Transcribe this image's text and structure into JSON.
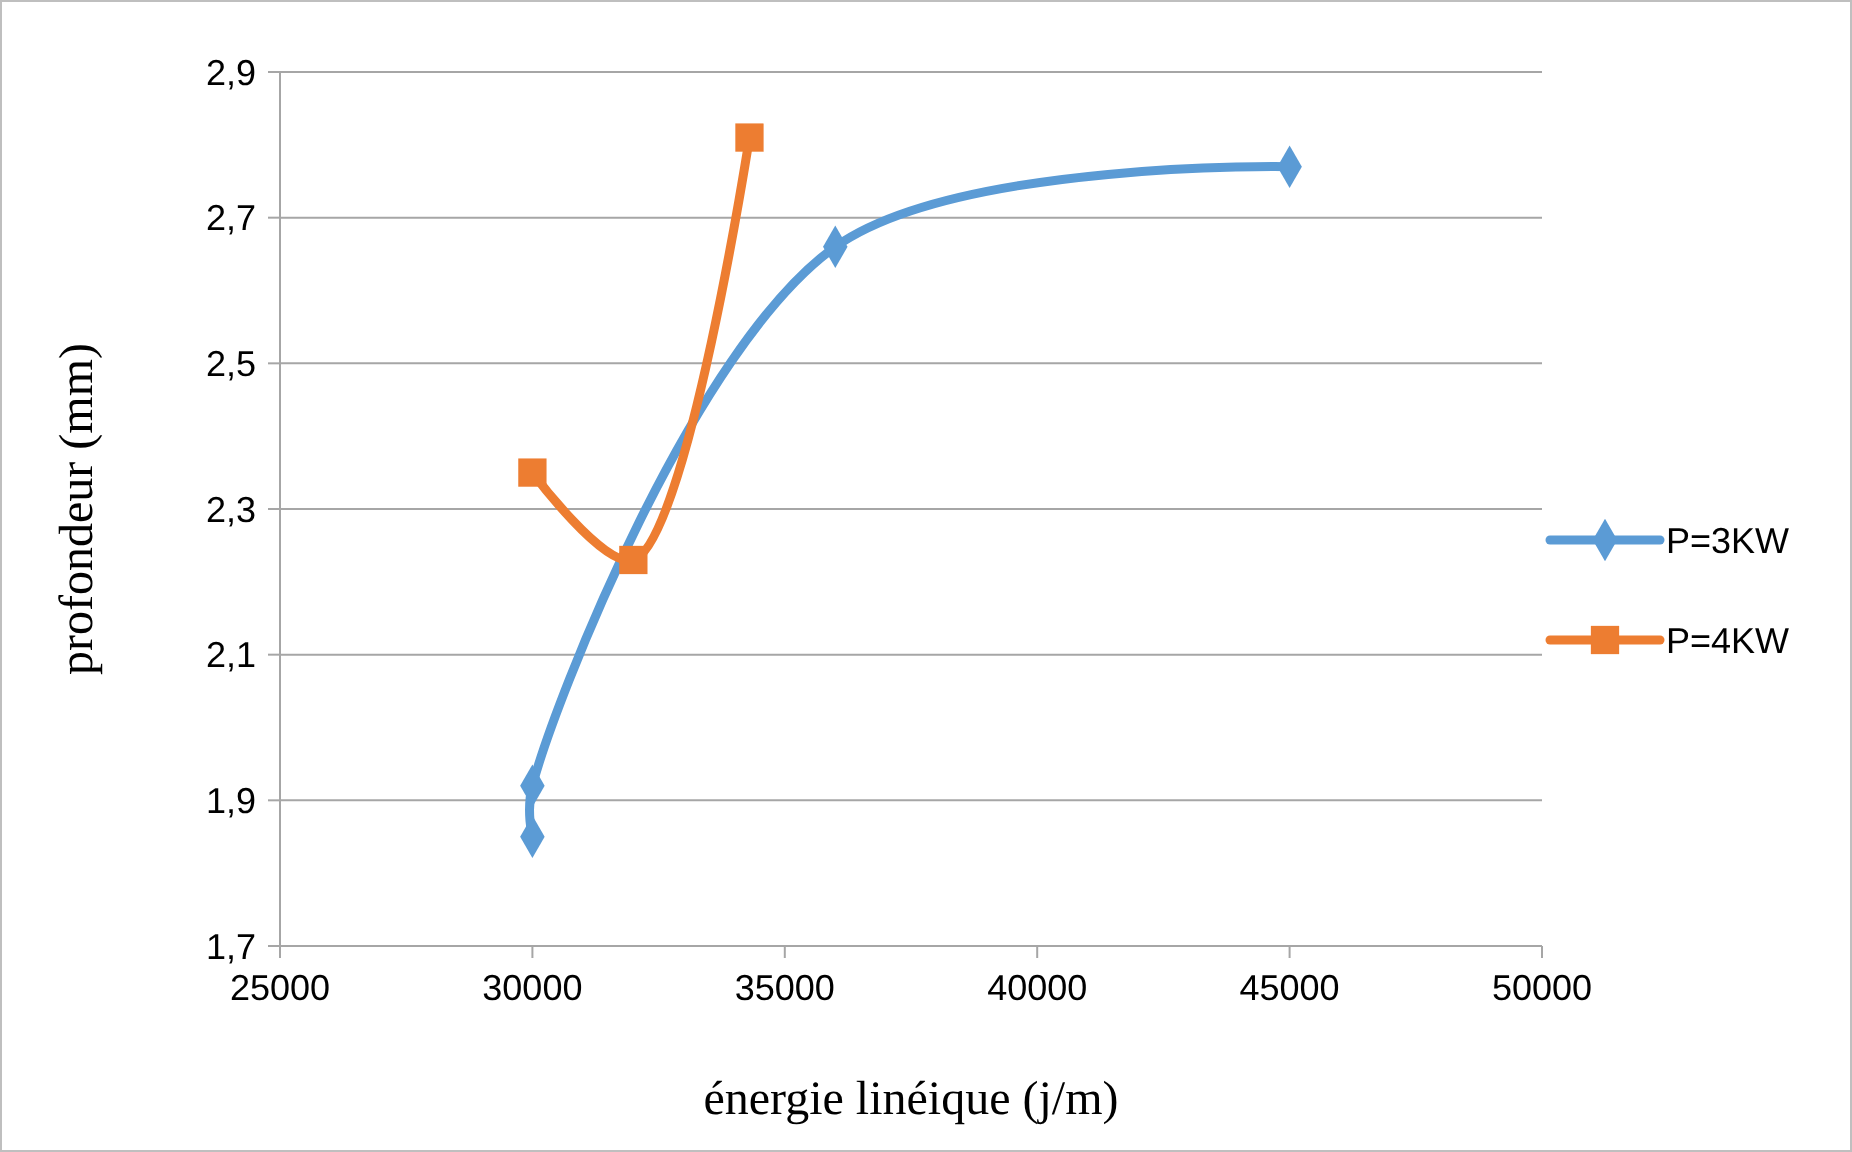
{
  "chart_data": {
    "type": "line",
    "xlabel": "énergie linéique (j/m)",
    "ylabel": "profondeur (mm)",
    "xlim": [
      25000,
      50000
    ],
    "xticks": [
      25000,
      30000,
      35000,
      40000,
      45000,
      50000
    ],
    "ylim": [
      1.7,
      2.9
    ],
    "yticks": [
      {
        "value": 1.7,
        "label": "1,7"
      },
      {
        "value": 1.9,
        "label": "1,9"
      },
      {
        "value": 2.1,
        "label": "2,1"
      },
      {
        "value": 2.3,
        "label": "2,3"
      },
      {
        "value": 2.5,
        "label": "2,5"
      },
      {
        "value": 2.7,
        "label": "2,7"
      },
      {
        "value": 2.9,
        "label": "2,9"
      }
    ],
    "grid": "y",
    "legend": "right",
    "line_style": "solid",
    "series": [
      {
        "name": "P=3KW",
        "color": "#5b9bd5",
        "marker": "diamond",
        "x": [
          30000,
          30000,
          36000,
          45000
        ],
        "values": [
          1.85,
          1.92,
          2.66,
          2.77
        ]
      },
      {
        "name": "P=4KW",
        "color": "#ed7d31",
        "marker": "square",
        "x": [
          30000,
          32000,
          34300
        ],
        "values": [
          2.35,
          2.23,
          2.81
        ]
      }
    ]
  }
}
